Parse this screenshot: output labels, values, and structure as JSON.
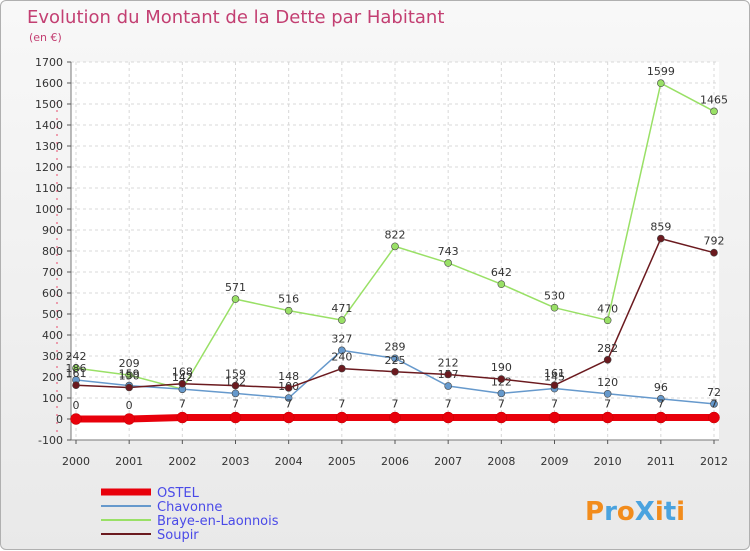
{
  "chart_data": {
    "type": "line",
    "title": "Evolution du Montant de la Dette par Habitant",
    "subtitle": "(en €)",
    "xlabel": "",
    "ylabel": "",
    "x": [
      "2000",
      "2001",
      "2002",
      "2003",
      "2004",
      "2005",
      "2006",
      "2007",
      "2008",
      "2009",
      "2010",
      "2011",
      "2012"
    ],
    "ylim": [
      -100,
      1700
    ],
    "yticks": [
      -100,
      0,
      100,
      200,
      300,
      400,
      500,
      600,
      700,
      800,
      900,
      1000,
      1100,
      1200,
      1300,
      1400,
      1500,
      1600,
      1700
    ],
    "grid": true,
    "legend_position": "bottom-left",
    "series": [
      {
        "name": "OSTEL",
        "color": "#e8000b",
        "values": [
          0,
          0,
          7,
          7,
          7,
          7,
          7,
          7,
          7,
          7,
          7,
          7,
          7
        ],
        "labels": [
          "0",
          "0",
          "7",
          "7",
          "7",
          "7",
          "7",
          "7",
          "7",
          "7",
          "7",
          "7",
          "7"
        ]
      },
      {
        "name": "Chavonne",
        "color": "#6699cc",
        "values": [
          186,
          159,
          142,
          122,
          100,
          327,
          289,
          157,
          122,
          145,
          120,
          96,
          72
        ],
        "labels": [
          "186",
          "159",
          "142",
          "122",
          "100",
          "327",
          "289",
          "157",
          "122",
          "145",
          "120",
          "96",
          "72"
        ]
      },
      {
        "name": "Braye-en-Laonnois",
        "color": "#99e066",
        "values": [
          242,
          209,
          142,
          571,
          516,
          471,
          822,
          743,
          642,
          530,
          470,
          1599,
          1465
        ],
        "labels": [
          "242",
          "209",
          "142",
          "571",
          "516",
          "471",
          "822",
          "743",
          "642",
          "530",
          "470",
          "1599",
          "1465"
        ]
      },
      {
        "name": "Soupir",
        "color": "#6b1a1f",
        "values": [
          161,
          150,
          168,
          159,
          148,
          240,
          225,
          212,
          190,
          161,
          282,
          859,
          792
        ],
        "labels": [
          "161",
          "150",
          "168",
          "159",
          "148",
          "240",
          "225",
          "212",
          "190",
          "161",
          "282",
          "859",
          "792"
        ]
      }
    ]
  },
  "logo": {
    "text": "ProXiti",
    "letter_colors": [
      "#f28c1c",
      "#4aa3df",
      "#f28c1c",
      "#4aa3df",
      "#f28c1c",
      "#4aa3df",
      "#f28c1c"
    ]
  }
}
